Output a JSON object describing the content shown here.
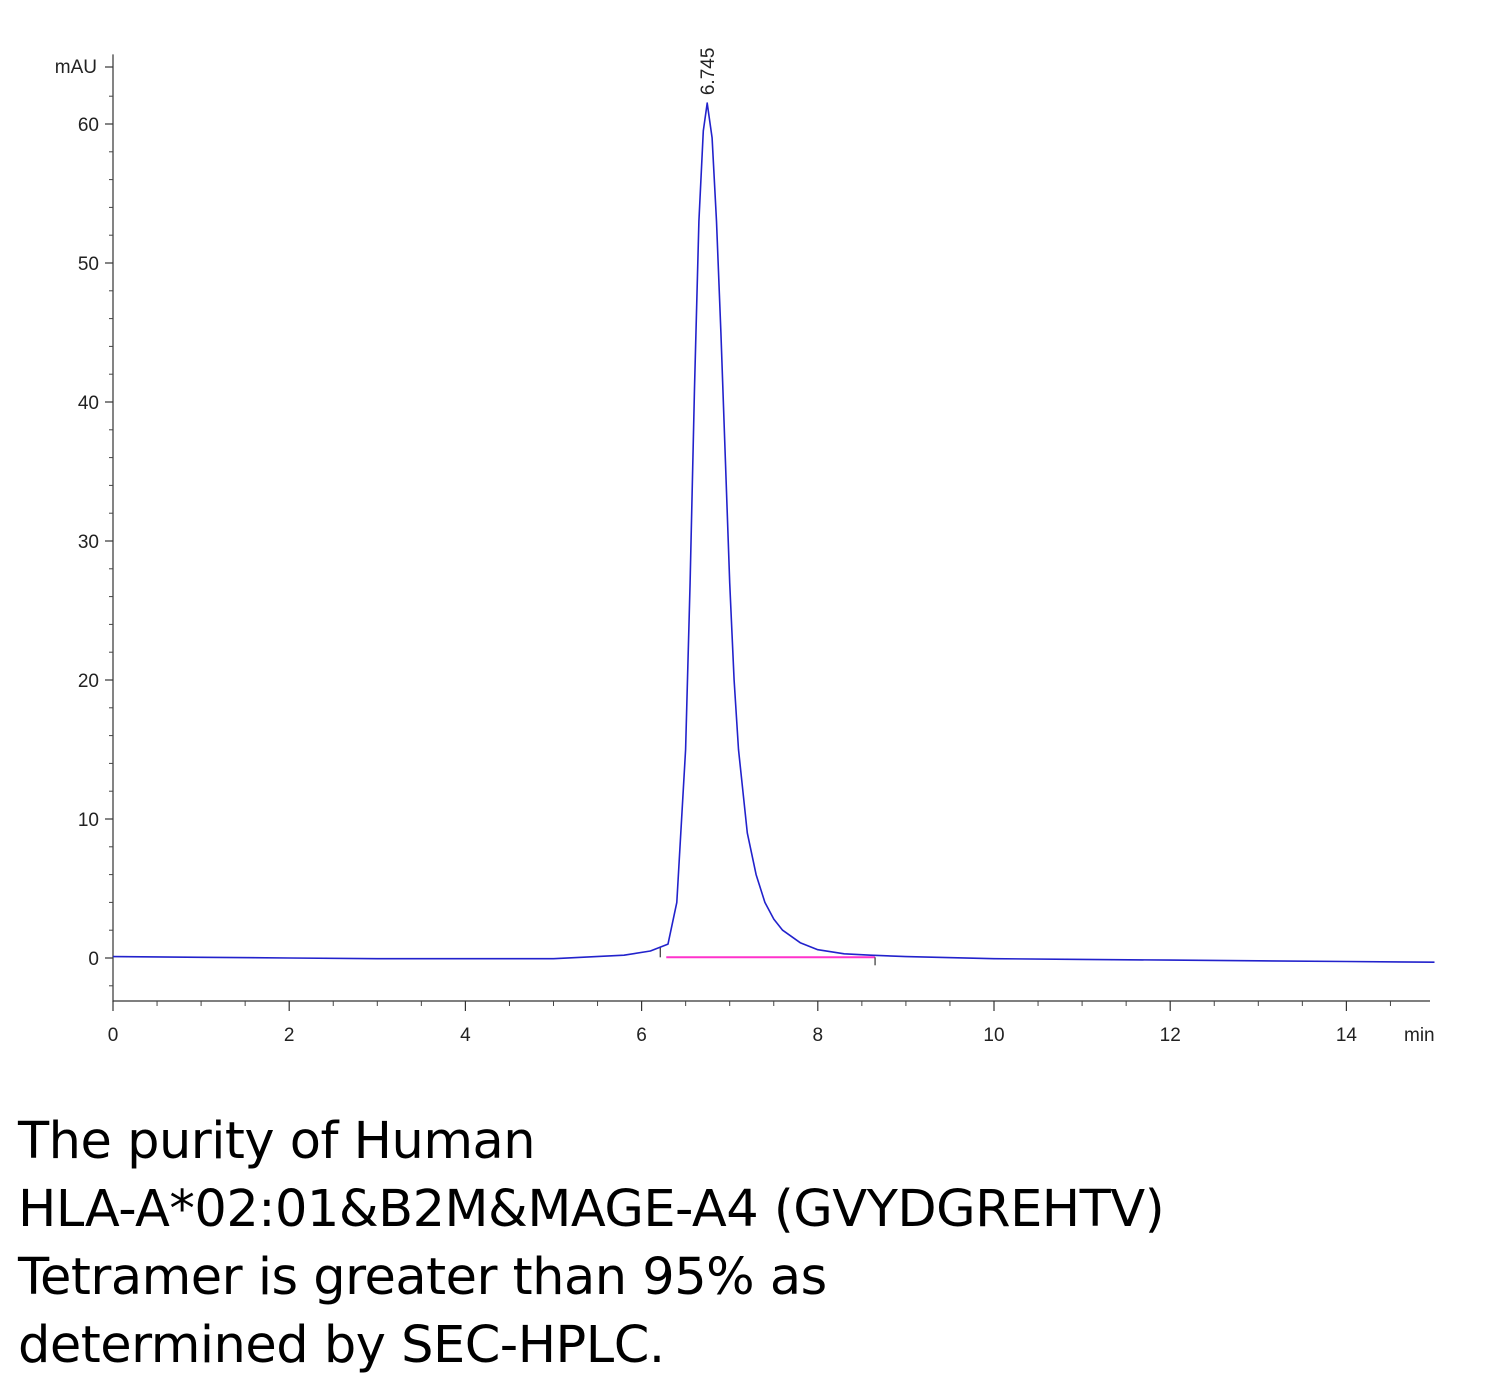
{
  "chart_data": {
    "type": "line",
    "y_unit_label": "mAU",
    "x_unit_label": "min",
    "xlim": [
      0,
      15
    ],
    "ylim": [
      -3,
      64
    ],
    "x_ticks": [
      0,
      2,
      4,
      6,
      8,
      10,
      12,
      14
    ],
    "y_ticks": [
      0,
      10,
      20,
      30,
      40,
      50,
      60
    ],
    "grid": false,
    "peak": {
      "retention_time": 6.745,
      "height": 61.5,
      "label": "6.745"
    },
    "integration_baseline": {
      "x_start": 6.28,
      "x_end": 8.65,
      "color": "#ff33cc"
    },
    "series": [
      {
        "color": "#2222cc",
        "x": [
          0,
          1,
          2,
          3,
          4,
          5,
          5.8,
          6.1,
          6.3,
          6.4,
          6.5,
          6.55,
          6.6,
          6.65,
          6.7,
          6.745,
          6.8,
          6.85,
          6.9,
          6.95,
          7.0,
          7.05,
          7.1,
          7.2,
          7.3,
          7.4,
          7.5,
          7.6,
          7.8,
          8.0,
          8.3,
          8.6,
          9.0,
          10,
          11,
          12,
          13,
          14,
          15
        ],
        "y": [
          0.1,
          0.05,
          0.0,
          -0.05,
          -0.05,
          -0.05,
          0.2,
          0.5,
          1.0,
          4.0,
          15.0,
          27.0,
          41.0,
          53.0,
          59.5,
          61.5,
          59.0,
          53.0,
          45.0,
          36.0,
          27.0,
          20.0,
          15.0,
          9.0,
          6.0,
          4.0,
          2.8,
          2.0,
          1.1,
          0.6,
          0.3,
          0.2,
          0.1,
          -0.05,
          -0.1,
          -0.15,
          -0.2,
          -0.25,
          -0.3
        ]
      }
    ]
  },
  "caption": {
    "lines": [
      "The purity of Human",
      "HLA-A*02:01&B2M&MAGE-A4 (GVYDGREHTV)",
      "Tetramer is greater than 95% as",
      "determined by SEC-HPLC."
    ]
  }
}
